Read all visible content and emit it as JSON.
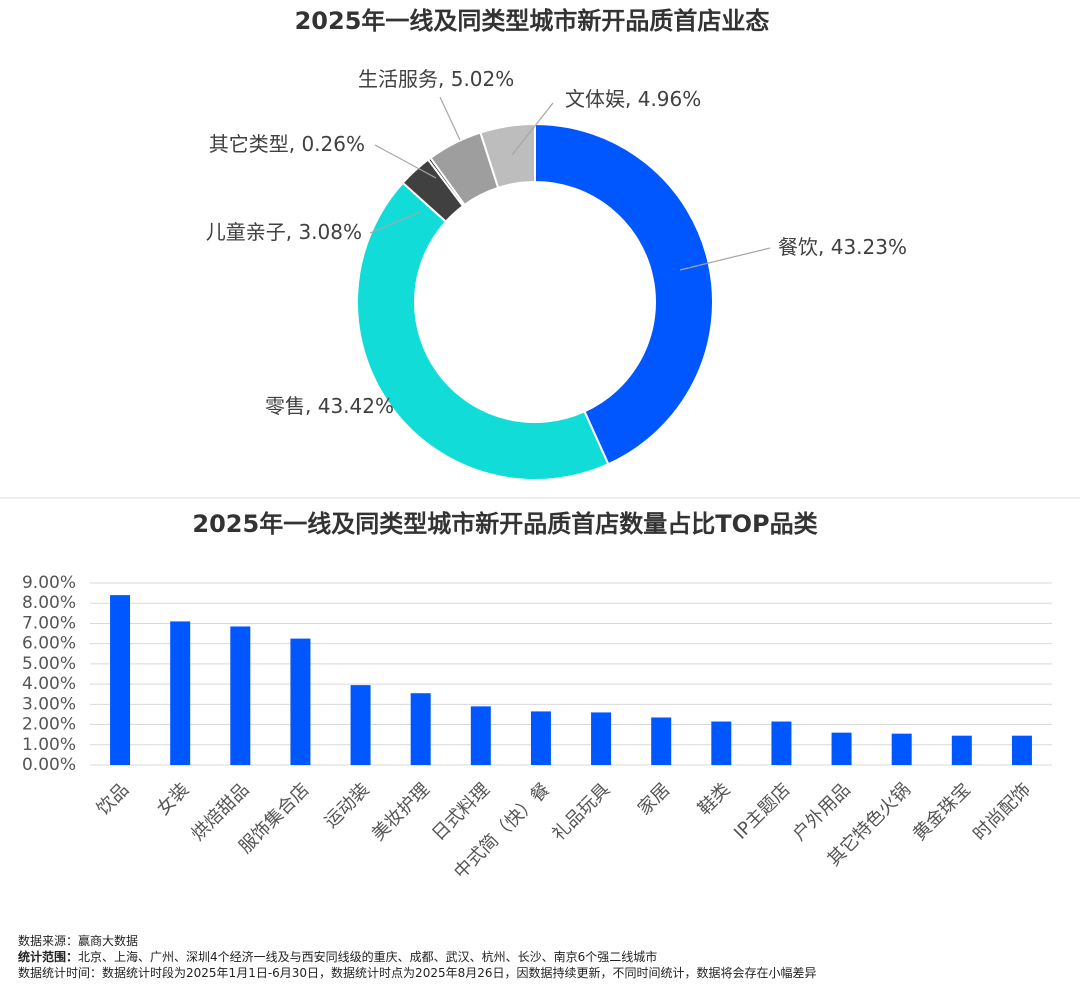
{
  "chart_data": [
    {
      "type": "donut",
      "title": "2025年一线及同类型城市新开品质首店业态",
      "categories": [
        "餐饮",
        "零售",
        "儿童亲子",
        "其它类型",
        "生活服务",
        "文体娱"
      ],
      "values": [
        43.23,
        43.42,
        3.08,
        0.26,
        5.02,
        4.96
      ],
      "value_labels": [
        "43.23%",
        "43.42%",
        "3.08%",
        "0.26%",
        "5.02%",
        "4.96%"
      ],
      "colors": [
        "#0057ff",
        "#12dcd8",
        "#404040",
        "#111111",
        "#9e9e9e",
        "#bdbdbd"
      ]
    },
    {
      "type": "bar",
      "title": "2025年一线及同类型城市新开品质首店数量占比TOP品类",
      "categories": [
        "饮品",
        "女装",
        "烘焙甜品",
        "服饰集合店",
        "运动装",
        "美妆护理",
        "日式料理",
        "中式简（快）餐",
        "礼品玩具",
        "家居",
        "鞋类",
        "IP主题店",
        "户外用品",
        "其它特色火锅",
        "黄金珠宝",
        "时尚配饰"
      ],
      "values": [
        8.4,
        7.1,
        6.85,
        6.25,
        3.95,
        3.55,
        2.9,
        2.65,
        2.6,
        2.35,
        2.15,
        2.15,
        1.6,
        1.55,
        1.45,
        1.45
      ],
      "color": "#0057ff",
      "ylim": [
        0,
        9
      ],
      "yticks": [
        {
          "value": 0,
          "label": "0.00%"
        },
        {
          "value": 1,
          "label": "1.00%"
        },
        {
          "value": 2,
          "label": "2.00%"
        },
        {
          "value": 3,
          "label": "3.00%"
        },
        {
          "value": 4,
          "label": "4.00%"
        },
        {
          "value": 5,
          "label": "5.00%"
        },
        {
          "value": 6,
          "label": "6.00%"
        },
        {
          "value": 7,
          "label": "7.00%"
        },
        {
          "value": 8,
          "label": "8.00%"
        },
        {
          "value": 9,
          "label": "9.00%"
        }
      ],
      "grid": true
    }
  ],
  "notes": [
    {
      "label": "数据来源：",
      "text": "赢商大数据"
    },
    {
      "label": "统计范围：",
      "text": "北京、上海、广州、深圳4个经济一线及与西安同线级的重庆、成都、武汉、杭州、长沙、南京6个强二线城市"
    },
    {
      "label": "数据统计时间：",
      "text": "数据统计时段为2025年1月1日-6月30日，数据统计时点为2025年8月26日，因数据持续更新，不同时间统计，数据将会存在小幅差异"
    }
  ]
}
